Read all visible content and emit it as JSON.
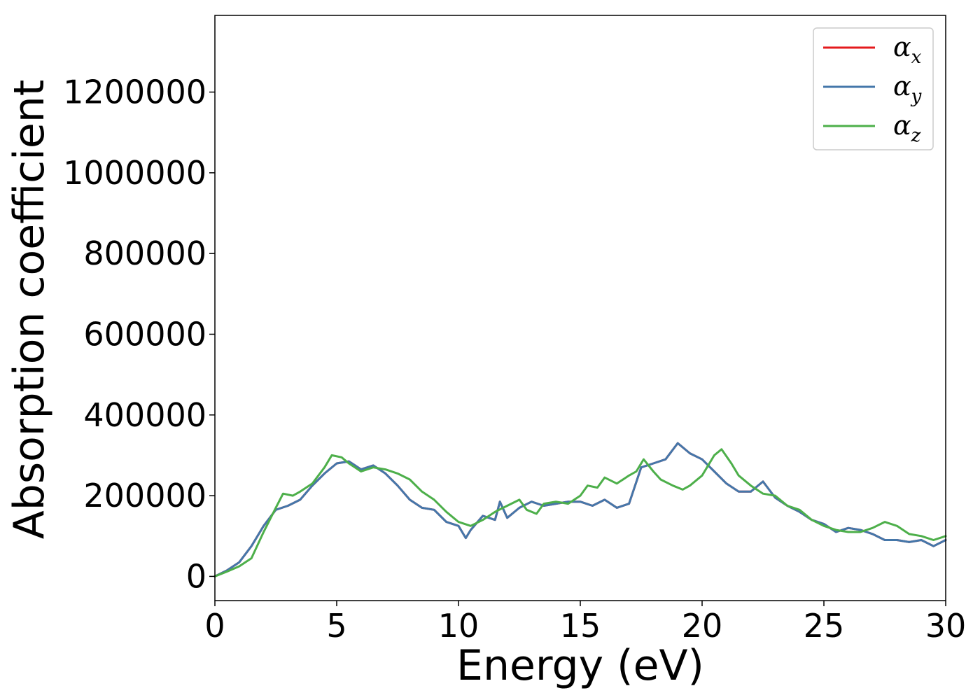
{
  "chart_data": {
    "type": "line",
    "xlabel": "Energy (eV)",
    "ylabel": "Absorption coefficient",
    "xlim": [
      0,
      30
    ],
    "ylim": [
      -60000,
      1390000
    ],
    "xticks": [
      0,
      5,
      10,
      15,
      20,
      25,
      30
    ],
    "xtick_labels": [
      "0",
      "5",
      "10",
      "15",
      "20",
      "25",
      "30"
    ],
    "yticks": [
      0,
      200000,
      400000,
      600000,
      800000,
      1000000,
      1200000
    ],
    "ytick_labels": [
      "0",
      "200000",
      "400000",
      "600000",
      "800000",
      "1000000",
      "1200000"
    ],
    "grid": false,
    "legend_position": "top-right",
    "series": [
      {
        "name": "α_x",
        "legend_symbol": "α",
        "legend_subscript": "x",
        "color": "#e41a1c",
        "x": [
          0,
          0.5,
          1,
          1.5,
          2,
          2.5,
          3,
          3.5,
          4,
          4.5,
          5,
          5.5,
          6,
          6.5,
          7,
          7.5,
          8,
          8.5,
          9,
          9.5,
          10,
          10.3,
          10.5,
          11,
          11.5,
          11.7,
          12,
          12.5,
          13,
          13.5,
          14,
          14.5,
          15,
          15.5,
          16,
          16.5,
          17,
          17.5,
          18,
          18.5,
          19,
          19.5,
          20,
          20.5,
          21,
          21.5,
          22,
          22.5,
          23,
          23.5,
          24,
          24.5,
          25,
          25.5,
          26,
          26.5,
          27,
          27.5,
          28,
          28.5,
          29,
          29.5,
          30
        ],
        "y": [
          0,
          15000,
          35000,
          75000,
          125000,
          165000,
          175000,
          190000,
          225000,
          255000,
          280000,
          285000,
          265000,
          275000,
          255000,
          225000,
          190000,
          170000,
          165000,
          135000,
          125000,
          95000,
          115000,
          150000,
          140000,
          185000,
          145000,
          170000,
          185000,
          175000,
          180000,
          185000,
          185000,
          175000,
          190000,
          170000,
          180000,
          270000,
          280000,
          290000,
          330000,
          305000,
          290000,
          260000,
          230000,
          210000,
          210000,
          235000,
          195000,
          175000,
          160000,
          140000,
          130000,
          110000,
          120000,
          115000,
          105000,
          90000,
          90000,
          85000,
          90000,
          75000,
          90000
        ]
      },
      {
        "name": "α_y",
        "legend_symbol": "α",
        "legend_subscript": "y",
        "color": "#4477aa",
        "x": [
          0,
          0.5,
          1,
          1.5,
          2,
          2.5,
          3,
          3.5,
          4,
          4.5,
          5,
          5.5,
          6,
          6.5,
          7,
          7.5,
          8,
          8.5,
          9,
          9.5,
          10,
          10.3,
          10.5,
          11,
          11.5,
          11.7,
          12,
          12.5,
          13,
          13.5,
          14,
          14.5,
          15,
          15.5,
          16,
          16.5,
          17,
          17.5,
          18,
          18.5,
          19,
          19.5,
          20,
          20.5,
          21,
          21.5,
          22,
          22.5,
          23,
          23.5,
          24,
          24.5,
          25,
          25.5,
          26,
          26.5,
          27,
          27.5,
          28,
          28.5,
          29,
          29.5,
          30
        ],
        "y": [
          0,
          15000,
          35000,
          75000,
          125000,
          165000,
          175000,
          190000,
          225000,
          255000,
          280000,
          285000,
          265000,
          275000,
          255000,
          225000,
          190000,
          170000,
          165000,
          135000,
          125000,
          95000,
          115000,
          150000,
          140000,
          185000,
          145000,
          170000,
          185000,
          175000,
          180000,
          185000,
          185000,
          175000,
          190000,
          170000,
          180000,
          270000,
          280000,
          290000,
          330000,
          305000,
          290000,
          260000,
          230000,
          210000,
          210000,
          235000,
          195000,
          175000,
          160000,
          140000,
          130000,
          110000,
          120000,
          115000,
          105000,
          90000,
          90000,
          85000,
          90000,
          75000,
          90000
        ]
      },
      {
        "name": "α_z",
        "legend_symbol": "α",
        "legend_subscript": "z",
        "color": "#4daf4a",
        "x": [
          0,
          0.5,
          1,
          1.5,
          2,
          2.5,
          2.8,
          3.2,
          3.5,
          4,
          4.5,
          4.8,
          5.2,
          5.5,
          6,
          6.5,
          7,
          7.5,
          8,
          8.5,
          9,
          9.5,
          10,
          10.5,
          11,
          11.5,
          12,
          12.5,
          12.8,
          13.2,
          13.5,
          14,
          14.5,
          15,
          15.3,
          15.7,
          16,
          16.5,
          17,
          17.3,
          17.6,
          18,
          18.3,
          18.8,
          19.2,
          19.5,
          20,
          20.5,
          20.8,
          21.2,
          21.5,
          22,
          22.5,
          23,
          23.5,
          24,
          24.5,
          25,
          25.5,
          26,
          26.5,
          27,
          27.5,
          28,
          28.5,
          29,
          29.5,
          30
        ],
        "y": [
          0,
          12000,
          25000,
          45000,
          110000,
          170000,
          205000,
          200000,
          210000,
          230000,
          270000,
          300000,
          295000,
          280000,
          260000,
          270000,
          265000,
          255000,
          240000,
          210000,
          190000,
          160000,
          135000,
          125000,
          140000,
          160000,
          175000,
          190000,
          165000,
          155000,
          180000,
          185000,
          180000,
          200000,
          225000,
          220000,
          245000,
          230000,
          250000,
          260000,
          290000,
          260000,
          240000,
          225000,
          215000,
          225000,
          250000,
          300000,
          315000,
          280000,
          250000,
          225000,
          205000,
          200000,
          175000,
          165000,
          140000,
          125000,
          115000,
          110000,
          110000,
          120000,
          135000,
          125000,
          105000,
          100000,
          90000,
          100000
        ]
      }
    ]
  }
}
